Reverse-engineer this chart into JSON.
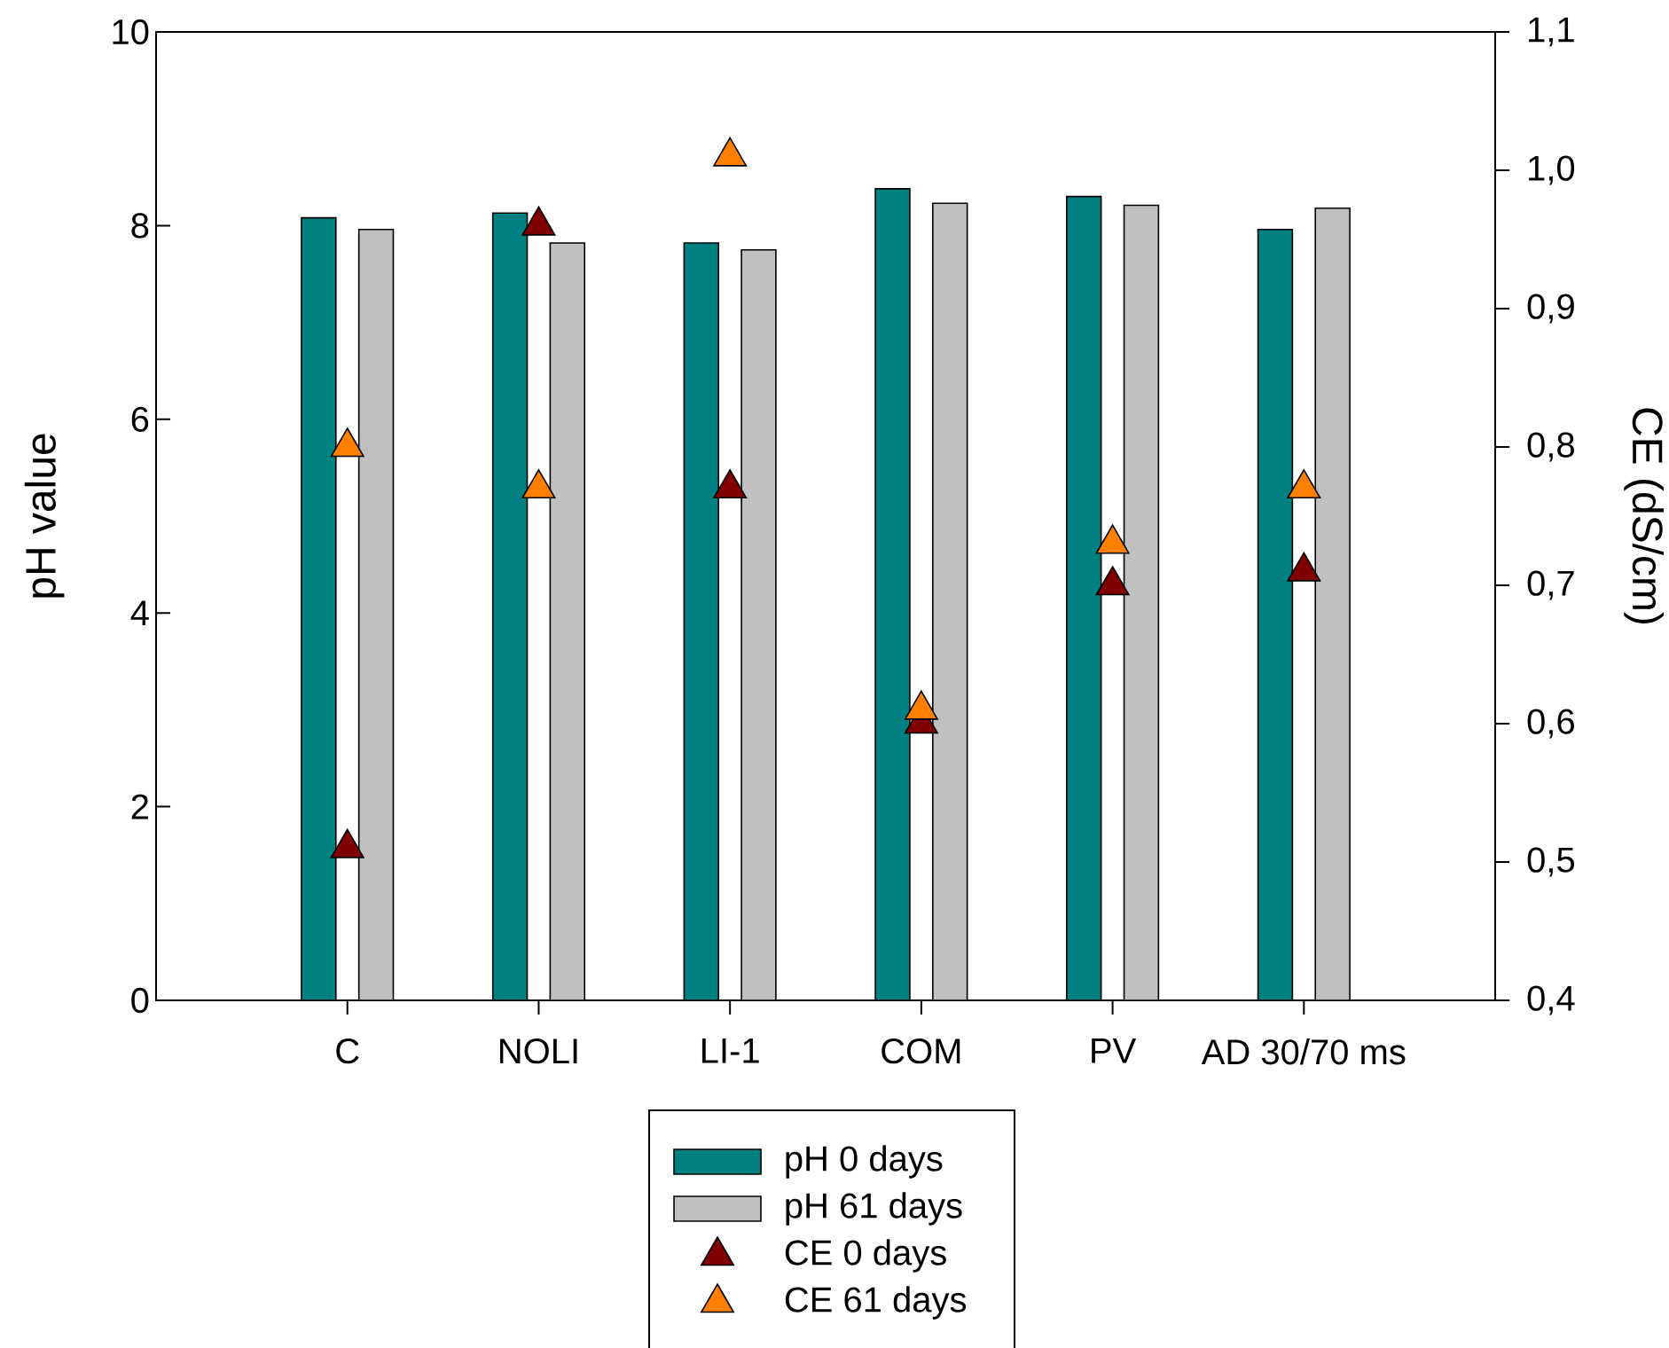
{
  "chart_data": {
    "type": "bar",
    "categories": [
      "C",
      "NOLI",
      "LI-1",
      "COM",
      "PV",
      "AD 30/70 ms"
    ],
    "ylabel": "pH value",
    "y2label": "CE (dS/cm)",
    "ylim": [
      0,
      10
    ],
    "yticks": [
      0,
      2,
      4,
      6,
      8,
      10
    ],
    "y2lim": [
      0.4,
      1.1
    ],
    "y2ticks": [
      {
        "value": 0.4,
        "label": "0,4"
      },
      {
        "value": 0.5,
        "label": "0,5"
      },
      {
        "value": 0.6,
        "label": "0,6"
      },
      {
        "value": 0.7,
        "label": "0,7"
      },
      {
        "value": 0.8,
        "label": "0,8"
      },
      {
        "value": 0.9,
        "label": "0,9"
      },
      {
        "value": 1.0,
        "label": "1,0"
      },
      {
        "value": 1.1,
        "label": "1,1"
      }
    ],
    "legend": "bottom",
    "marker": "triangle",
    "series": [
      {
        "name": "pH 0 days",
        "color": "#008080",
        "values": [
          8.08,
          8.13,
          7.82,
          8.38,
          8.3,
          7.96
        ]
      },
      {
        "name": "pH 61 days",
        "color": "#c0c0c0",
        "values": [
          7.96,
          7.82,
          7.75,
          8.23,
          8.21,
          8.18
        ]
      },
      {
        "name": "CE 0 days",
        "type": "scatter",
        "axis": "y2",
        "color": "#800000",
        "values": [
          0.51,
          0.96,
          0.77,
          0.6,
          0.7,
          0.71
        ]
      },
      {
        "name": "CE 61 days",
        "type": "scatter",
        "axis": "y2",
        "color": "#ff8000",
        "values": [
          0.8,
          0.77,
          1.01,
          0.61,
          0.73,
          0.77
        ]
      }
    ]
  }
}
